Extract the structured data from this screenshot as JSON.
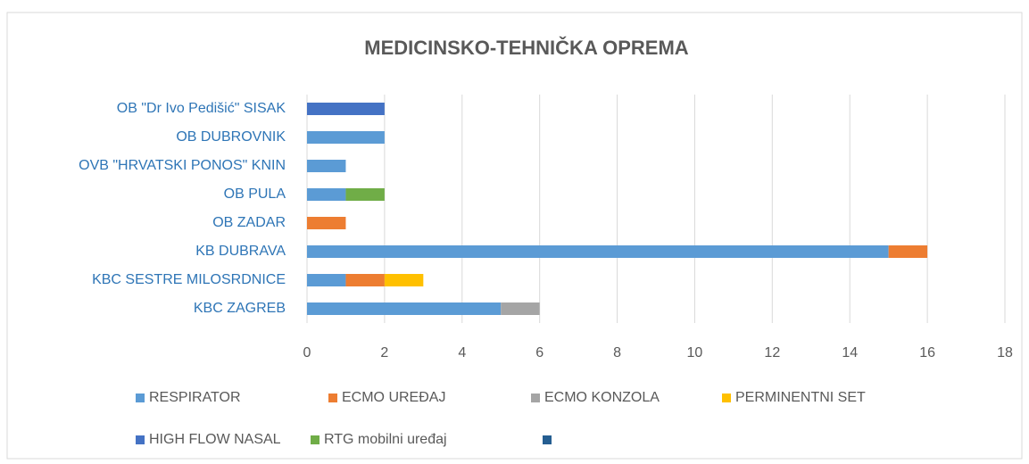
{
  "chart_data": {
    "type": "stacked_bar_horizontal",
    "title": "MEDICINSKO-TEHNIČKA OPREMA",
    "categories": [
      "OB \"Dr Ivo Pedišić\" SISAK",
      "OB DUBROVNIK",
      "OVB \"HRVATSKI PONOS\" KNIN",
      "OB PULA",
      "OB ZADAR",
      "KB DUBRAVA",
      "KBC SESTRE MILOSRDNICE",
      "KBC ZAGREB"
    ],
    "series": [
      {
        "name": "RESPIRATOR",
        "color": "#5b9bd5",
        "values": [
          0,
          2,
          1,
          1,
          0,
          15,
          1,
          5
        ]
      },
      {
        "name": "ECMO UREĐAJ",
        "color": "#ed7d31",
        "values": [
          0,
          0,
          0,
          0,
          1,
          1,
          1,
          0
        ]
      },
      {
        "name": "ECMO KONZOLA",
        "color": "#a5a5a5",
        "values": [
          0,
          0,
          0,
          0,
          0,
          0,
          0,
          1
        ]
      },
      {
        "name": "PERMINENTNI SET",
        "color": "#ffc000",
        "values": [
          0,
          0,
          0,
          0,
          0,
          0,
          1,
          0
        ]
      },
      {
        "name": "HIGH FLOW NASAL",
        "color": "#4472c4",
        "values": [
          2,
          0,
          0,
          0,
          0,
          0,
          0,
          0
        ]
      },
      {
        "name": "RTG mobilni uređaj",
        "color": "#70ad47",
        "values": [
          0,
          0,
          0,
          1,
          0,
          0,
          0,
          0
        ]
      },
      {
        "name": null,
        "color": "#255e91",
        "values": [
          0,
          0,
          0,
          0,
          0,
          0,
          0,
          0
        ]
      }
    ],
    "xlim": [
      0,
      18
    ],
    "xticks": [
      0,
      2,
      4,
      6,
      8,
      10,
      12,
      14,
      16,
      18
    ],
    "grid": true,
    "legend": "bottom"
  }
}
